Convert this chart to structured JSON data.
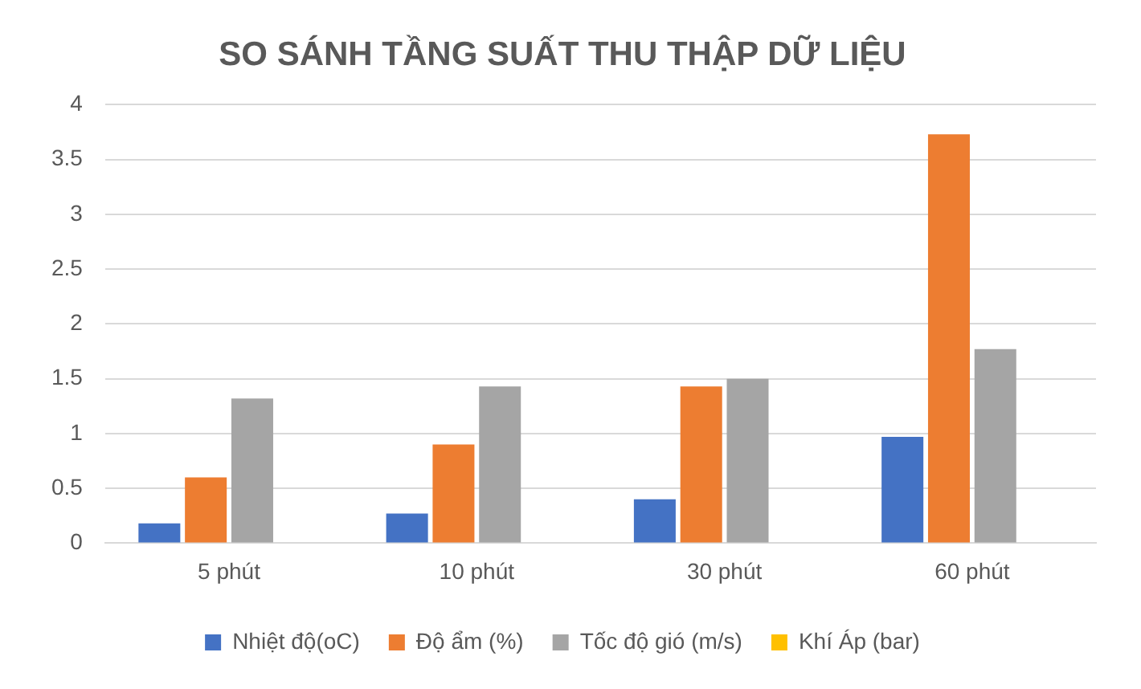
{
  "chart_data": {
    "type": "bar",
    "title": "SO SÁNH TẦNG SUẤT THU THẬP DỮ LIỆU",
    "categories": [
      "5 phút",
      "10 phút",
      "30 phút",
      "60 phút"
    ],
    "series": [
      {
        "name": "Nhiệt độ(oC)",
        "color": "#4472c4",
        "values": [
          0.18,
          0.27,
          0.4,
          0.97
        ]
      },
      {
        "name": "Độ ẩm (%)",
        "color": "#ed7d31",
        "values": [
          0.6,
          0.9,
          1.43,
          3.73
        ]
      },
      {
        "name": "Tốc độ gió (m/s)",
        "color": "#a5a5a5",
        "values": [
          1.32,
          1.43,
          1.5,
          1.77
        ]
      },
      {
        "name": "Khí Áp (bar)",
        "color": "#ffc000",
        "values": [
          0,
          0,
          0,
          0
        ]
      }
    ],
    "ylim": [
      0,
      4
    ],
    "yticks": [
      0,
      0.5,
      1,
      1.5,
      2,
      2.5,
      3,
      3.5,
      4
    ],
    "grid": "y",
    "legend": "bottom"
  }
}
